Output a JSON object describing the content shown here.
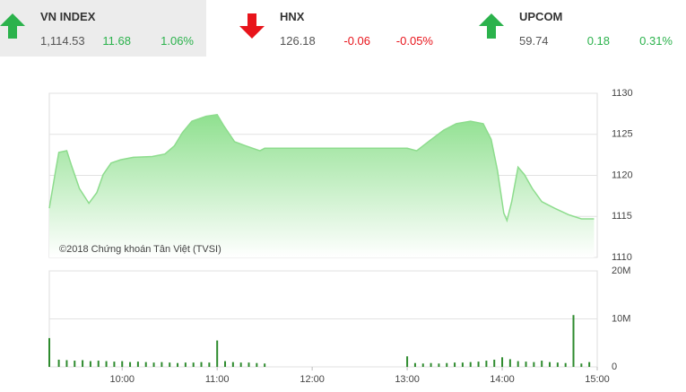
{
  "indices": [
    {
      "name": "VN INDEX",
      "value": "1,114.53",
      "change": "11.68",
      "percent": "1.06%",
      "direction": "up"
    },
    {
      "name": "HNX",
      "value": "126.18",
      "change": "-0.06",
      "percent": "-0.05%",
      "direction": "down"
    },
    {
      "name": "UPCOM",
      "value": "59.74",
      "change": "0.18",
      "percent": "0.31%",
      "direction": "up"
    }
  ],
  "colors": {
    "up": "#2bb24c",
    "down": "#e8141b"
  },
  "chart_data": [
    {
      "type": "area",
      "annotation": "©2018 Chứng khoán Tân Việt (TVSI)",
      "color": "#8ddc8d",
      "x": [
        "09:14",
        "09:18",
        "09:20",
        "09:25",
        "09:28",
        "09:33",
        "09:39",
        "09:44",
        "09:48",
        "09:53",
        "09:59",
        "10:07",
        "10:19",
        "10:27",
        "10:33",
        "10:38",
        "10:44",
        "10:53",
        "11:00",
        "11:04",
        "11:11",
        "11:18",
        "11:27",
        "11:30",
        "13:00",
        "13:06",
        "13:14",
        "13:23",
        "13:31",
        "13:40",
        "13:48",
        "13:53",
        "13:57",
        "14:01",
        "14:03",
        "14:06",
        "14:10",
        "14:14",
        "14:19",
        "14:25",
        "14:33",
        "14:42",
        "14:50",
        "14:58"
      ],
      "values": [
        1116.0,
        1120.6,
        1122.8,
        1123.0,
        1121.2,
        1118.4,
        1116.6,
        1117.9,
        1120.1,
        1121.5,
        1121.9,
        1122.2,
        1122.3,
        1122.6,
        1123.6,
        1125.2,
        1126.6,
        1127.2,
        1127.4,
        1126.1,
        1124.1,
        1123.6,
        1123.0,
        1123.3,
        1123.3,
        1123.0,
        1124.2,
        1125.5,
        1126.3,
        1126.6,
        1126.3,
        1124.4,
        1120.6,
        1115.4,
        1114.5,
        1116.8,
        1121.0,
        1120.1,
        1118.4,
        1116.8,
        1116.0,
        1115.2,
        1114.7,
        1114.7
      ],
      "xlim": [
        "09:14",
        "15:00"
      ],
      "ylim": [
        1110,
        1130
      ],
      "yticks": [
        1110,
        1115,
        1120,
        1125,
        1130
      ],
      "grid": true
    },
    {
      "type": "bar",
      "color": "#2e8b2e",
      "x": [
        "09:14",
        "09:20",
        "09:25",
        "09:30",
        "09:35",
        "09:40",
        "09:45",
        "09:50",
        "09:55",
        "10:00",
        "10:05",
        "10:10",
        "10:15",
        "10:20",
        "10:25",
        "10:30",
        "10:35",
        "10:40",
        "10:45",
        "10:50",
        "10:55",
        "11:00",
        "11:05",
        "11:10",
        "11:15",
        "11:20",
        "11:25",
        "11:30",
        "13:00",
        "13:05",
        "13:10",
        "13:15",
        "13:20",
        "13:25",
        "13:30",
        "13:35",
        "13:40",
        "13:45",
        "13:50",
        "13:55",
        "14:00",
        "14:05",
        "14:10",
        "14:15",
        "14:20",
        "14:25",
        "14:30",
        "14:35",
        "14:40",
        "14:45",
        "14:50",
        "14:55"
      ],
      "values": [
        6000000,
        1500000,
        1400000,
        1300000,
        1400000,
        1200000,
        1300000,
        1200000,
        1100000,
        1200000,
        1000000,
        1100000,
        1000000,
        900000,
        1000000,
        900000,
        800000,
        900000,
        900000,
        1000000,
        900000,
        5500000,
        1200000,
        1000000,
        900000,
        900000,
        800000,
        700000,
        2200000,
        800000,
        700000,
        800000,
        700000,
        800000,
        900000,
        900000,
        1000000,
        1100000,
        1300000,
        1500000,
        2000000,
        1600000,
        1200000,
        1100000,
        1000000,
        1300000,
        1000000,
        900000,
        800000,
        10800000,
        700000,
        1000000
      ],
      "xlim": [
        "09:14",
        "15:00"
      ],
      "ylim": [
        0,
        20000000
      ],
      "yticks": [
        {
          "value": 0,
          "label": "0"
        },
        {
          "value": 10000000,
          "label": "10M"
        },
        {
          "value": 20000000,
          "label": "20M"
        }
      ],
      "xticks": [
        "10:00",
        "11:00",
        "12:00",
        "13:00",
        "14:00",
        "15:00"
      ],
      "grid": true
    }
  ]
}
